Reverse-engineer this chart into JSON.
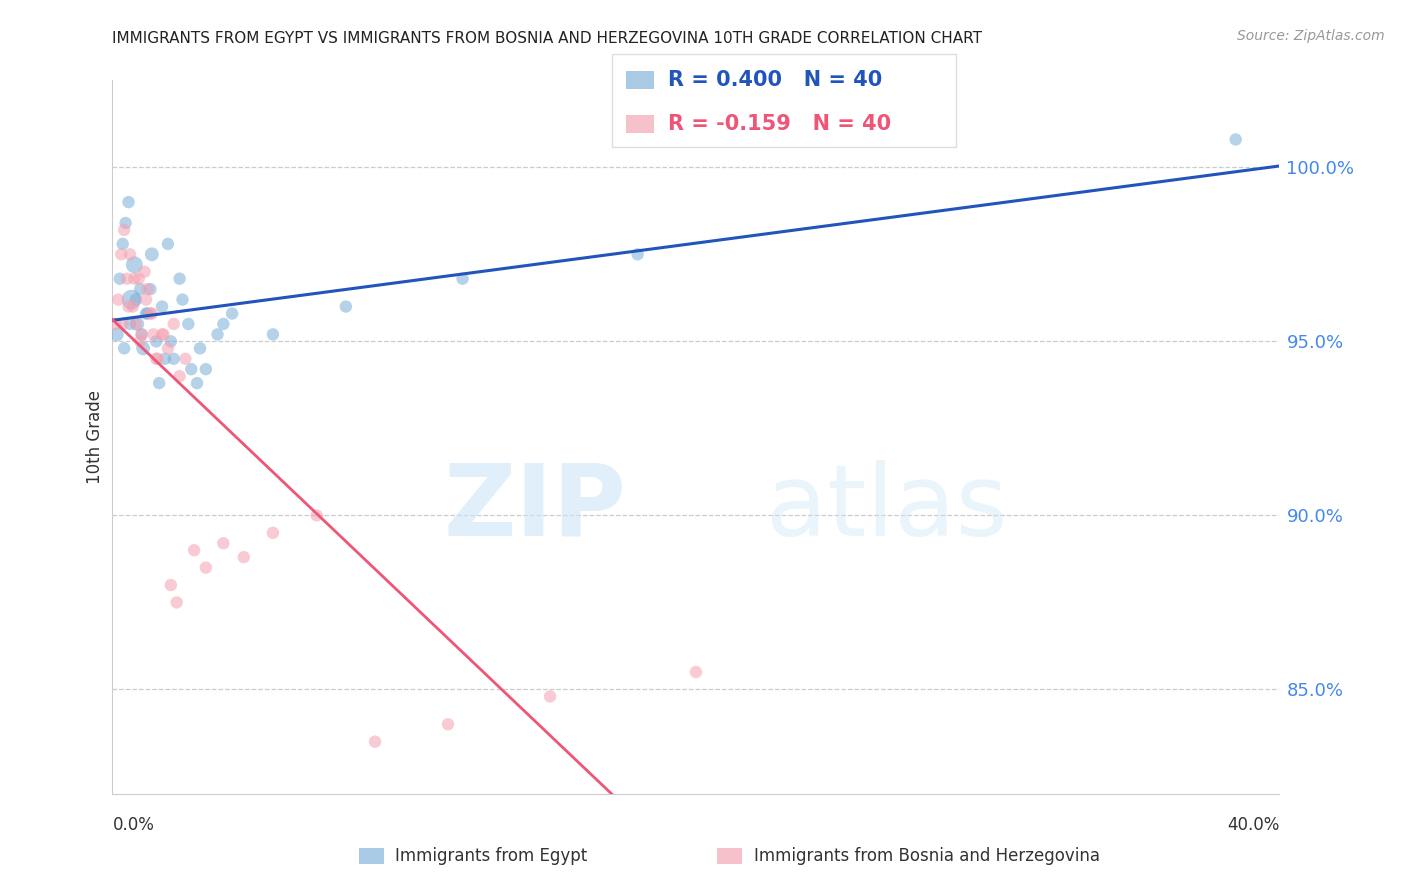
{
  "title": "IMMIGRANTS FROM EGYPT VS IMMIGRANTS FROM BOSNIA AND HERZEGOVINA 10TH GRADE CORRELATION CHART",
  "source": "Source: ZipAtlas.com",
  "ylabel": "10th Grade",
  "right_yticks": [
    85.0,
    90.0,
    95.0,
    100.0
  ],
  "r_egypt": 0.4,
  "n_egypt": 40,
  "r_bosnia": -0.159,
  "n_bosnia": 40,
  "color_egypt": "#7aaed6",
  "color_bosnia": "#f4a0b0",
  "trend_egypt": "#2255bb",
  "trend_bosnia": "#ee5577",
  "xmin": 0.0,
  "xmax": 40.0,
  "ymin": 82.0,
  "ymax": 102.5,
  "egypt_x": [
    0.15,
    0.25,
    0.35,
    0.45,
    0.55,
    0.65,
    0.75,
    0.85,
    0.95,
    1.05,
    1.2,
    1.35,
    1.5,
    1.7,
    1.9,
    2.1,
    2.3,
    2.6,
    2.9,
    3.2,
    3.6,
    4.1,
    0.4,
    0.6,
    0.8,
    1.0,
    1.15,
    1.3,
    1.6,
    1.8,
    2.0,
    2.4,
    2.7,
    3.0,
    3.8,
    5.5,
    8.0,
    12.0,
    18.0,
    38.5
  ],
  "egypt_y": [
    95.2,
    96.8,
    97.8,
    98.4,
    99.0,
    96.2,
    97.2,
    95.5,
    96.5,
    94.8,
    95.8,
    97.5,
    95.0,
    96.0,
    97.8,
    94.5,
    96.8,
    95.5,
    93.8,
    94.2,
    95.2,
    95.8,
    94.8,
    95.5,
    96.2,
    95.2,
    95.8,
    96.5,
    93.8,
    94.5,
    95.0,
    96.2,
    94.2,
    94.8,
    95.5,
    95.2,
    96.0,
    96.8,
    97.5,
    100.8
  ],
  "egypt_size": [
    100,
    80,
    80,
    80,
    80,
    200,
    150,
    100,
    80,
    100,
    80,
    100,
    80,
    80,
    80,
    80,
    80,
    80,
    80,
    80,
    80,
    80,
    80,
    80,
    80,
    80,
    80,
    80,
    80,
    80,
    80,
    80,
    80,
    80,
    80,
    80,
    80,
    80,
    80,
    80
  ],
  "bosnia_x": [
    0.1,
    0.2,
    0.3,
    0.4,
    0.5,
    0.6,
    0.7,
    0.8,
    0.9,
    1.0,
    1.1,
    1.2,
    1.3,
    1.4,
    1.5,
    1.7,
    1.9,
    2.1,
    2.3,
    2.5,
    2.8,
    3.2,
    3.8,
    4.5,
    5.5,
    7.0,
    9.0,
    11.5,
    15.0,
    20.0,
    0.35,
    0.55,
    0.75,
    0.95,
    1.15,
    1.35,
    1.55,
    1.75,
    2.0,
    2.2
  ],
  "bosnia_y": [
    95.5,
    96.2,
    97.5,
    98.2,
    96.8,
    97.5,
    96.0,
    95.5,
    96.8,
    95.2,
    97.0,
    96.5,
    95.8,
    95.2,
    94.5,
    95.2,
    94.8,
    95.5,
    94.0,
    94.5,
    89.0,
    88.5,
    89.2,
    88.8,
    89.5,
    90.0,
    83.5,
    84.0,
    84.8,
    85.5,
    95.5,
    96.0,
    96.8,
    95.0,
    96.2,
    95.8,
    94.5,
    95.2,
    88.0,
    87.5
  ],
  "bosnia_size": [
    80,
    80,
    80,
    80,
    80,
    80,
    80,
    80,
    80,
    80,
    80,
    80,
    80,
    80,
    80,
    80,
    80,
    80,
    80,
    80,
    80,
    80,
    80,
    80,
    80,
    80,
    80,
    80,
    80,
    80,
    80,
    80,
    80,
    80,
    80,
    80,
    80,
    80,
    80,
    80
  ]
}
